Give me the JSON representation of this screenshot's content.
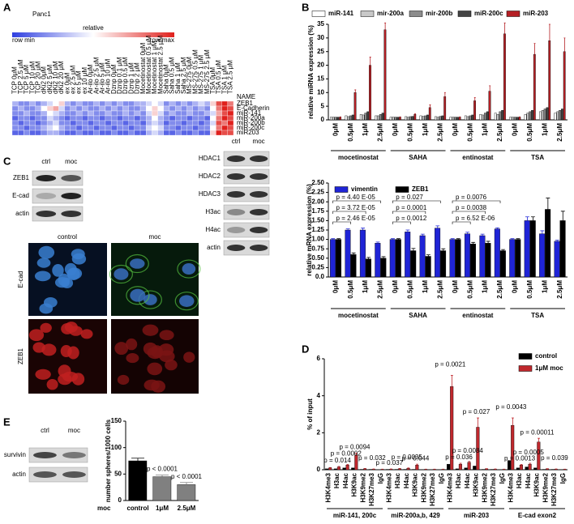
{
  "figure": {
    "panels": [
      "A",
      "B",
      "C",
      "D",
      "E"
    ],
    "blots_c_left": {
      "lanes": [
        "ctrl",
        "moc"
      ],
      "rows": [
        "ZEB1",
        "E-cad",
        "actin"
      ]
    },
    "blots_c_right": {
      "lanes": [
        "ctrl",
        "moc"
      ],
      "rows": [
        "HDAC1",
        "HDAC2",
        "HDAC3",
        "H3ac",
        "H4ac",
        "actin"
      ]
    },
    "micro": {
      "columns": [
        "control",
        "moc"
      ],
      "rows": [
        "E-cad",
        "ZEB1"
      ]
    },
    "blots_e": {
      "lanes": [
        "ctrl",
        "moc"
      ],
      "rows": [
        "survivin",
        "actin"
      ]
    }
  },
  "chart_data": [
    {
      "type": "heatmap",
      "title": "Panc1",
      "legend_title": "relative",
      "legend_min": "row min",
      "legend_max": "row max",
      "header": "NAME",
      "columns": [
        "TCP 0μM",
        "TCP 2.5 μM",
        "TCP 5 μM",
        "TCP 10 μM",
        "TCP 20 μM",
        "dKi2 0μM",
        "dKi2 5 μM",
        "dKi2 10 μM",
        "dKi2 20 μM",
        "ex 0μM",
        "ex 2.5 μM",
        "ex 5 μM",
        "ex 10 μM",
        "Ar-ilo 0μM",
        "Ar-ilo 2.5 μM",
        "Ar-ilo 5 μM",
        "Ar-ilo 10 μM",
        "Dznp 0μM",
        "Dznp 0.1 μM",
        "Dznp 0.5 μM",
        "Dznp 1 μM",
        "Dznp 2 μM",
        "Mocetinostat 0μM",
        "Mocetinostat 0.5 μM",
        "Mocetinostat 1 μM",
        "Mocetinostat 2.5 μM",
        "Saha 0μM",
        "Saha 0.5 μM",
        "Saha 1 μM",
        "Saha 2.5 μM",
        "MS-275 0μM",
        "MS-275 0.5 μM",
        "MS-275 1 μM",
        "MS-275 2.5 μM",
        "TSA 0μM",
        "TSA 0.5 μM",
        "TSA 1 μM",
        "TSA 2.5 μM"
      ],
      "rows": [
        "ZEB1",
        "E-Cadherin",
        "miR-141",
        "miR-200a",
        "miR-200b",
        "miR-200c",
        "miR203"
      ],
      "values": [
        [
          0.3,
          0.2,
          0.2,
          0.3,
          0.2,
          0.3,
          0.4,
          0.5,
          0.6,
          0.3,
          0.2,
          0.3,
          0.2,
          0.2,
          0.3,
          0.2,
          0.3,
          0.2,
          0.3,
          0.2,
          0.2,
          0.3,
          0.3,
          0.4,
          0.5,
          0.4,
          0.2,
          0.3,
          0.2,
          0.3,
          0.2,
          0.3,
          0.4,
          0.3,
          0.6,
          0.9,
          1.0,
          0.8
        ],
        [
          0.2,
          0.3,
          0.2,
          0.2,
          0.3,
          0.5,
          0.6,
          0.7,
          0.4,
          0.2,
          0.3,
          0.2,
          0.3,
          0.2,
          0.2,
          0.3,
          0.2,
          0.3,
          0.2,
          0.3,
          0.2,
          0.2,
          0.3,
          0.5,
          0.6,
          0.5,
          0.3,
          0.2,
          0.3,
          0.2,
          0.3,
          0.2,
          0.3,
          0.2,
          0.5,
          0.8,
          1.0,
          0.9
        ],
        [
          0.2,
          0.2,
          0.3,
          0.2,
          0.2,
          0.3,
          0.5,
          0.4,
          0.3,
          0.2,
          0.2,
          0.3,
          0.2,
          0.3,
          0.2,
          0.2,
          0.3,
          0.2,
          0.2,
          0.3,
          0.2,
          0.3,
          0.2,
          0.4,
          0.6,
          0.4,
          0.2,
          0.3,
          0.2,
          0.2,
          0.3,
          0.2,
          0.2,
          0.3,
          0.4,
          0.7,
          0.9,
          1.0
        ],
        [
          0.1,
          0.2,
          0.2,
          0.1,
          0.2,
          0.2,
          0.4,
          0.3,
          0.2,
          0.1,
          0.2,
          0.2,
          0.1,
          0.2,
          0.2,
          0.1,
          0.2,
          0.2,
          0.1,
          0.2,
          0.2,
          0.1,
          0.2,
          0.3,
          0.5,
          0.3,
          0.2,
          0.1,
          0.2,
          0.2,
          0.1,
          0.2,
          0.2,
          0.1,
          0.5,
          0.8,
          1.0,
          0.9
        ],
        [
          0.2,
          0.1,
          0.2,
          0.2,
          0.1,
          0.2,
          0.3,
          0.4,
          0.2,
          0.2,
          0.1,
          0.2,
          0.2,
          0.1,
          0.2,
          0.2,
          0.1,
          0.2,
          0.2,
          0.1,
          0.2,
          0.2,
          0.1,
          0.3,
          0.4,
          0.3,
          0.1,
          0.2,
          0.2,
          0.1,
          0.2,
          0.2,
          0.1,
          0.2,
          0.4,
          0.9,
          0.8,
          1.0
        ],
        [
          0.2,
          0.2,
          0.1,
          0.2,
          0.2,
          0.3,
          0.4,
          0.5,
          0.3,
          0.2,
          0.2,
          0.1,
          0.2,
          0.2,
          0.1,
          0.2,
          0.2,
          0.1,
          0.2,
          0.2,
          0.1,
          0.2,
          0.2,
          0.4,
          0.5,
          0.4,
          0.2,
          0.2,
          0.1,
          0.2,
          0.2,
          0.1,
          0.2,
          0.2,
          0.5,
          0.8,
          1.0,
          0.9
        ],
        [
          0.1,
          0.1,
          0.2,
          0.1,
          0.1,
          0.2,
          0.3,
          0.3,
          0.2,
          0.1,
          0.1,
          0.2,
          0.1,
          0.1,
          0.2,
          0.1,
          0.1,
          0.2,
          0.1,
          0.1,
          0.2,
          0.1,
          0.1,
          0.3,
          0.4,
          0.3,
          0.1,
          0.1,
          0.2,
          0.1,
          0.1,
          0.2,
          0.1,
          0.1,
          0.6,
          1.0,
          0.9,
          0.9
        ]
      ]
    },
    {
      "type": "bar",
      "ylabel": "relative miRNA expression (%)",
      "legend": "top",
      "categories": [
        "0μM",
        "0.5μM",
        "1μM",
        "2.5μM",
        "0μM",
        "0.5μM",
        "1μM",
        "2.5μM",
        "0μM",
        "0.5μM",
        "1μM",
        "2.5μM",
        "0μM",
        "0.5μM",
        "1μM",
        "2.5μM"
      ],
      "groups": [
        "mocetinostat",
        "SAHA",
        "entinostat",
        "TSA"
      ],
      "ylim": [
        0,
        35
      ],
      "yticks": [
        0,
        5,
        10,
        15,
        20,
        25,
        30,
        35
      ],
      "series": [
        {
          "name": "miR-141",
          "color": "#ffffff",
          "values": [
            1,
            1.5,
            2,
            1.5,
            1,
            1.2,
            1.5,
            1.2,
            1,
            1.5,
            2,
            2.5,
            1,
            2,
            3,
            2.5
          ]
        },
        {
          "name": "mir-200a",
          "color": "#c8c8c8",
          "values": [
            1,
            1.2,
            1.8,
            1.5,
            1,
            1,
            1.3,
            1,
            1,
            1.2,
            1.8,
            2,
            1,
            2.5,
            3.5,
            3
          ]
        },
        {
          "name": "mir-200b",
          "color": "#8c8c8c",
          "values": [
            1,
            1.5,
            2.5,
            2,
            1,
            1.2,
            1.5,
            1.3,
            1,
            1.5,
            2.5,
            3,
            1,
            3,
            4,
            3.5
          ]
        },
        {
          "name": "miR-200c",
          "color": "#444444",
          "values": [
            1,
            1.8,
            3,
            2.5,
            1,
            1.3,
            1.8,
            1.5,
            1,
            1.8,
            3,
            3.5,
            1,
            3.5,
            4.5,
            4
          ]
        },
        {
          "name": "miR-203",
          "color": "#b52025",
          "values": [
            1,
            10,
            20,
            33,
            1,
            2,
            4.5,
            8.5,
            1,
            7,
            10.5,
            31.5,
            1,
            24,
            29,
            25
          ],
          "errors": [
            0.1,
            1,
            3,
            2.5,
            0.1,
            0.3,
            1,
            1.5,
            0.1,
            1.2,
            2,
            4,
            0.1,
            4,
            6,
            5
          ]
        }
      ]
    },
    {
      "type": "bar",
      "ylabel": "relative mRNA expression (%)",
      "legend": "upper left",
      "categories": [
        "0μM",
        "0.5μM",
        "1μM",
        "2.5μM",
        "0μM",
        "0.5μM",
        "1μM",
        "2.5μM",
        "0μM",
        "0.5μM",
        "1μM",
        "2.5μM",
        "0μM",
        "0.5μM",
        "1μM",
        "2.5μM"
      ],
      "groups": [
        "mocetinostat",
        "SAHA",
        "entinostat",
        "TSA"
      ],
      "ylim": [
        0,
        2.5
      ],
      "yticks": [
        {
          "value": 0,
          "label": "0.0"
        },
        0.25,
        {
          "value": 0.5,
          "label": "0.50"
        },
        0.75,
        {
          "value": 1,
          "label": "1.00"
        },
        1.25,
        {
          "value": 1.5,
          "label": "1.50"
        },
        1.75,
        {
          "value": 2,
          "label": "2.00"
        },
        2.25,
        {
          "value": 2.5,
          "label": "2.50"
        }
      ],
      "series": [
        {
          "name": "vimentin",
          "color": "#1f24d6",
          "values": [
            1,
            1.25,
            1.25,
            0.9,
            1,
            1.2,
            1.1,
            1.3,
            1,
            1.15,
            1.1,
            1.28,
            1,
            1.5,
            1.15,
            0.95
          ],
          "errors": [
            0.02,
            0.03,
            0.05,
            0.03,
            0.02,
            0.05,
            0.04,
            0.06,
            0.02,
            0.04,
            0.04,
            0.03,
            0.02,
            0.1,
            0.08,
            0.03
          ]
        },
        {
          "name": "ZEB1",
          "color": "#000000",
          "values": [
            1,
            0.6,
            0.48,
            0.5,
            1,
            0.7,
            0.55,
            0.7,
            1,
            0.88,
            0.9,
            0.7,
            1,
            1.5,
            1.8,
            1.5
          ],
          "errors": [
            0.02,
            0.04,
            0.04,
            0.04,
            0.02,
            0.06,
            0.04,
            0.05,
            0.02,
            0.04,
            0.05,
            0.03,
            0.02,
            0.1,
            0.3,
            0.25
          ]
        }
      ],
      "annotations": [
        "p = 4.40 E-05",
        "p = 3.72 E-05",
        "p = 2.46 E-05",
        "p = 0.027",
        "p = 0.0001",
        "p = 0.0012",
        "p = 0.0076",
        "p = 0.0038",
        "p = 6.52 E-06"
      ]
    },
    {
      "type": "bar",
      "ylabel": "% of input",
      "legend": "upper right",
      "categories": [
        "H3K4me3",
        "H3ac",
        "H4ac",
        "H3K9ac",
        "H3K9me2",
        "H3K27me3",
        "IgG",
        "H3K4me3",
        "H3ac",
        "H4ac",
        "H3K9ac",
        "H3K9me2",
        "H3K27me3",
        "IgG",
        "H3K4me3",
        "H3ac",
        "H4ac",
        "H3K9ac",
        "H3K9me2",
        "H3K27me3",
        "IgG",
        "H3K4me3",
        "H3ac",
        "H4ac",
        "H3K9ac",
        "H3K9me2",
        "H3K27me3",
        "IgG"
      ],
      "groups": [
        "miR-141, 200c",
        "miR-200a,b, 429",
        "miR-203",
        "E-cad exon2"
      ],
      "ylim": [
        0,
        6
      ],
      "yticks": [
        0,
        2,
        4,
        6
      ],
      "series": [
        {
          "name": "control",
          "color": "#000000",
          "values": [
            0.05,
            0.05,
            0.1,
            0.1,
            0.02,
            0.02,
            0.01,
            0.02,
            0.02,
            0.02,
            0.02,
            0.01,
            0.01,
            0.01,
            0.3,
            0.05,
            0.1,
            0.2,
            0.02,
            0.02,
            0.01,
            0.5,
            0.1,
            0.15,
            0.1,
            0.02,
            0.02,
            0.01
          ]
        },
        {
          "name": "1μM moc",
          "color": "#c0282d",
          "values": [
            0.1,
            0.15,
            0.25,
            0.8,
            0.05,
            0.03,
            0.02,
            0.03,
            0.05,
            0.08,
            0.25,
            0.02,
            0.02,
            0.02,
            4.5,
            0.3,
            0.4,
            2.3,
            0.05,
            0.03,
            0.02,
            2.4,
            0.25,
            0.3,
            1.5,
            0.05,
            0.03,
            0.02
          ],
          "errors": [
            0.02,
            0.03,
            0.04,
            0.1,
            0.02,
            0.01,
            0.01,
            0.01,
            0.02,
            0.02,
            0.05,
            0.01,
            0.01,
            0.01,
            0.6,
            0.05,
            0.05,
            0.5,
            0.01,
            0.01,
            0.01,
            0.4,
            0.04,
            0.05,
            0.2,
            0.01,
            0.01,
            0.01
          ]
        }
      ],
      "annotations": [
        "p = 0.014",
        "p = 0.0002",
        "p = 0.0094",
        "p = 0.032",
        "p = 0.037",
        "p = 0.0035",
        "p = 0.044",
        "p = 0.0021",
        "p = 0.036",
        "p = 0.0084",
        "p = 0.027",
        "p = 0.0043",
        "p = 0.0013",
        "p = 0.0005",
        "p = 0.00011",
        "p = 0.039"
      ]
    },
    {
      "type": "bar",
      "ylabel": "number spheres/1000 cells",
      "xlabel": "moc",
      "categories": [
        "control",
        "1μM",
        "2.5μM"
      ],
      "ylim": [
        0,
        150
      ],
      "yticks": [
        0,
        50,
        100,
        150
      ],
      "series": [
        {
          "colors": [
            "#000000",
            "#808080",
            "#808080"
          ],
          "values": [
            75,
            45,
            30
          ],
          "errors": [
            5,
            3,
            4
          ]
        }
      ],
      "annotations": [
        "p < 0.0001",
        "p < 0.0001"
      ]
    }
  ]
}
